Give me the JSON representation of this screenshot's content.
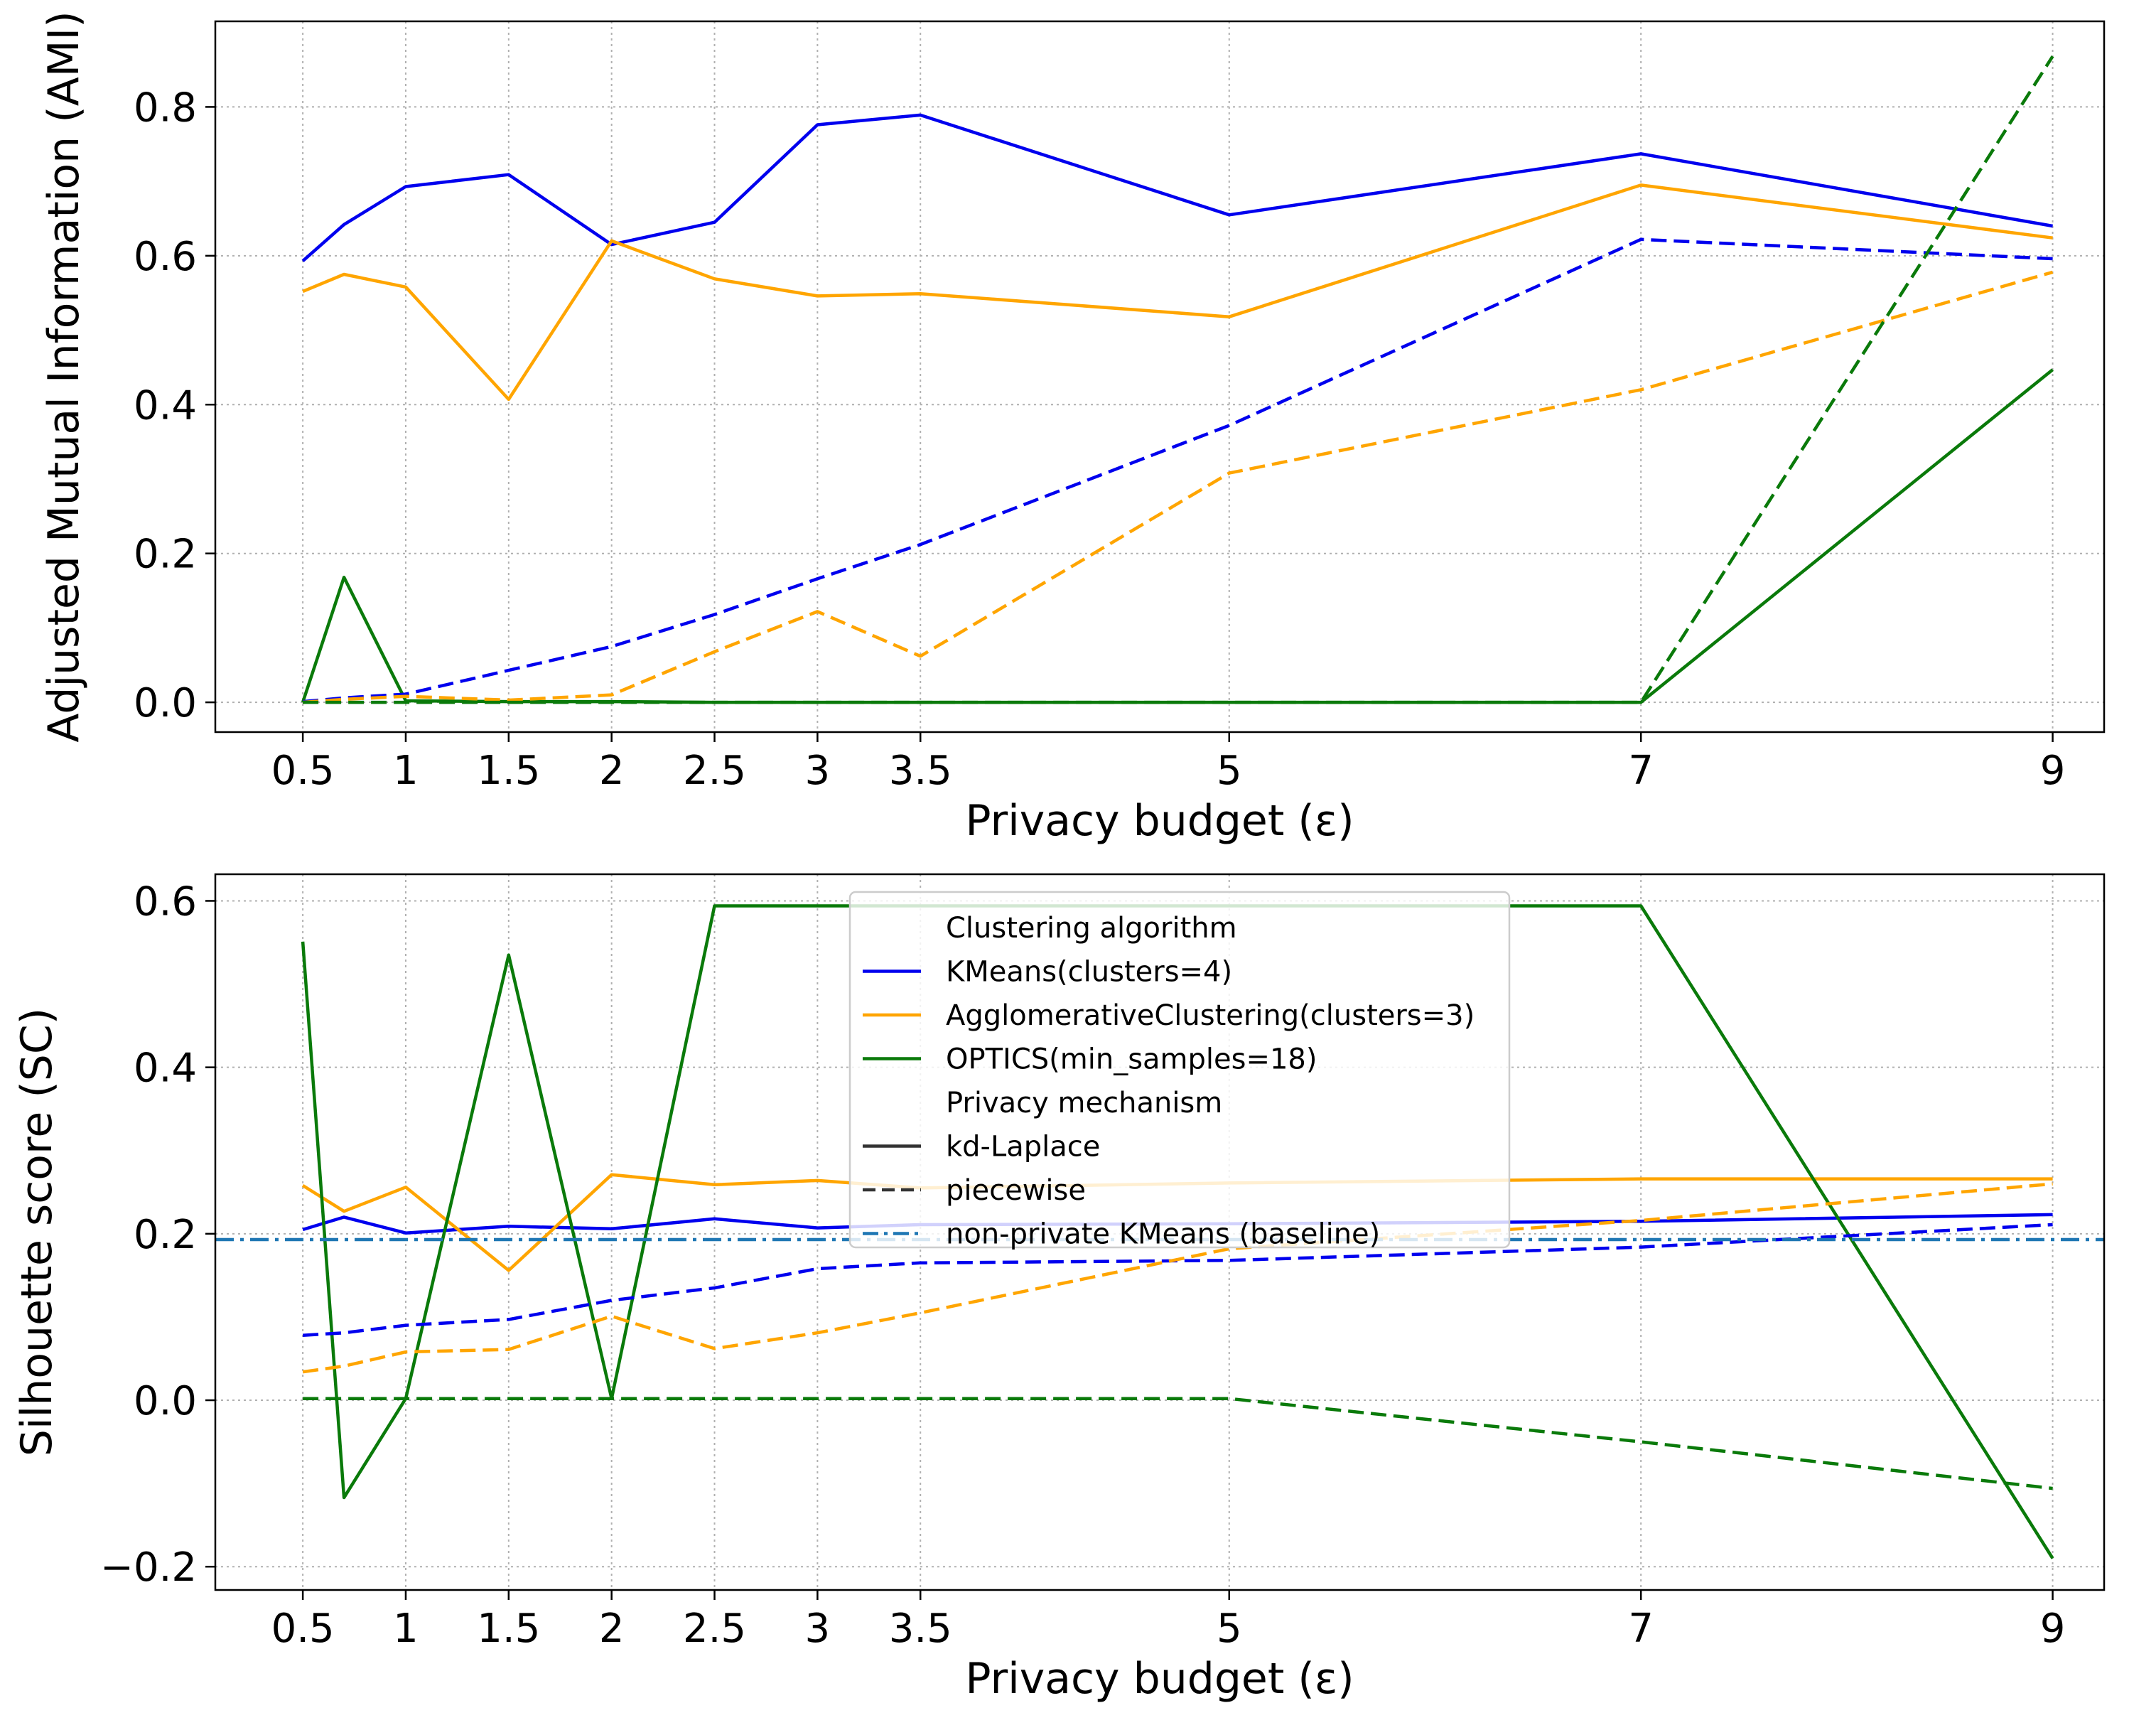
{
  "chart_data": [
    {
      "type": "line",
      "title": "",
      "xlabel": "Privacy budget (ε)",
      "ylabel": "Adjusted Mutual Information (AMI)",
      "x_ticks": [
        0.5,
        1,
        1.5,
        2,
        2.5,
        3,
        3.5,
        5,
        7,
        9
      ],
      "x_tick_labels": [
        "0.5",
        "1",
        "1.5",
        "2",
        "2.5",
        "3",
        "3.5",
        "5",
        "7",
        "9"
      ],
      "y_ticks": [
        0.0,
        0.2,
        0.4,
        0.6,
        0.8
      ],
      "y_tick_labels": [
        "0.0",
        "0.2",
        "0.4",
        "0.6",
        "0.8"
      ],
      "xlim": [
        0.075,
        9.25
      ],
      "ylim": [
        -0.04,
        0.915
      ],
      "grid": true,
      "series": [
        {
          "name": "KMeans(clusters=4)",
          "color": "#0000ee",
          "style": "solid",
          "x": [
            0.5,
            0.7,
            1,
            1.5,
            2,
            2.5,
            3,
            3.5,
            5,
            7,
            9
          ],
          "y": [
            0.593,
            0.642,
            0.693,
            0.709,
            0.615,
            0.645,
            0.776,
            0.789,
            0.655,
            0.737,
            0.64
          ]
        },
        {
          "name": "AgglomerativeClustering(clusters=3)",
          "color": "#ffa500",
          "style": "solid",
          "x": [
            0.5,
            0.7,
            1,
            1.5,
            2,
            2.5,
            3,
            3.5,
            5,
            7,
            9
          ],
          "y": [
            0.552,
            0.575,
            0.558,
            0.407,
            0.62,
            0.569,
            0.546,
            0.549,
            0.518,
            0.695,
            0.624
          ]
        },
        {
          "name": "OPTICS(min_samples=18)",
          "color": "#0a7a0a",
          "style": "solid",
          "x": [
            0.5,
            0.7,
            1,
            1.5,
            2,
            2.5,
            3,
            3.5,
            5,
            7,
            9
          ],
          "y": [
            0.0,
            0.168,
            0.002,
            0.001,
            0.001,
            0.0,
            0.0,
            0.0,
            0.0,
            0.0,
            0.447
          ]
        },
        {
          "name": "KMeans(clusters=4)",
          "color": "#0000ee",
          "style": "dashed",
          "x": [
            0.5,
            0.7,
            1,
            1.5,
            2,
            2.5,
            3,
            3.5,
            5,
            7,
            9
          ],
          "y": [
            0.001,
            0.006,
            0.011,
            0.043,
            0.075,
            0.118,
            0.166,
            0.212,
            0.372,
            0.622,
            0.596
          ]
        },
        {
          "name": "AgglomerativeClustering(clusters=3)",
          "color": "#ffa500",
          "style": "dashed",
          "x": [
            0.5,
            0.7,
            1,
            1.5,
            2,
            2.5,
            3,
            3.5,
            5,
            7,
            9
          ],
          "y": [
            0.0,
            0.004,
            0.008,
            0.003,
            0.01,
            0.068,
            0.122,
            0.062,
            0.308,
            0.42,
            0.578
          ]
        },
        {
          "name": "OPTICS(min_samples=18)",
          "color": "#0a7a0a",
          "style": "dashed",
          "x": [
            0.5,
            0.7,
            1,
            1.5,
            2,
            2.5,
            3,
            3.5,
            5,
            7,
            9
          ],
          "y": [
            0.0,
            0.0,
            0.0,
            0.0,
            0.0,
            0.0,
            0.0,
            0.0,
            0.0,
            0.0,
            0.868
          ]
        }
      ]
    },
    {
      "type": "line",
      "title": "",
      "xlabel": "Privacy budget (ε)",
      "ylabel": "Silhouette score (SC)",
      "x_ticks": [
        0.5,
        1,
        1.5,
        2,
        2.5,
        3,
        3.5,
        5,
        7,
        9
      ],
      "x_tick_labels": [
        "0.5",
        "1",
        "1.5",
        "2",
        "2.5",
        "3",
        "3.5",
        "5",
        "7",
        "9"
      ],
      "y_ticks": [
        -0.2,
        0.0,
        0.2,
        0.4,
        0.6
      ],
      "y_tick_labels": [
        "−0.2",
        "0.0",
        "0.2",
        "0.4",
        "0.6"
      ],
      "xlim": [
        0.075,
        9.25
      ],
      "ylim": [
        -0.228,
        0.632
      ],
      "grid": true,
      "series": [
        {
          "name": "KMeans(clusters=4)",
          "color": "#0000ee",
          "style": "solid",
          "x": [
            0.5,
            0.7,
            1,
            1.5,
            2,
            2.5,
            3,
            3.5,
            5,
            7,
            9
          ],
          "y": [
            0.205,
            0.22,
            0.201,
            0.209,
            0.206,
            0.218,
            0.207,
            0.211,
            0.212,
            0.215,
            0.223
          ]
        },
        {
          "name": "AgglomerativeClustering(clusters=3)",
          "color": "#ffa500",
          "style": "solid",
          "x": [
            0.5,
            0.7,
            1,
            1.5,
            2,
            2.5,
            3,
            3.5,
            5,
            7,
            9
          ],
          "y": [
            0.258,
            0.227,
            0.256,
            0.156,
            0.271,
            0.259,
            0.264,
            0.255,
            0.261,
            0.266,
            0.266
          ]
        },
        {
          "name": "OPTICS(min_samples=18)",
          "color": "#0a7a0a",
          "style": "solid",
          "x": [
            0.5,
            0.7,
            1,
            1.5,
            2,
            2.5,
            3,
            3.5,
            5,
            7,
            9
          ],
          "y": [
            0.551,
            -0.117,
            0.002,
            0.535,
            0.002,
            0.594,
            0.594,
            0.594,
            0.594,
            0.594,
            -0.19
          ]
        },
        {
          "name": "KMeans(clusters=4)",
          "color": "#0000ee",
          "style": "dashed",
          "x": [
            0.5,
            0.7,
            1,
            1.5,
            2,
            2.5,
            3,
            3.5,
            5,
            7,
            9
          ],
          "y": [
            0.078,
            0.081,
            0.09,
            0.097,
            0.12,
            0.135,
            0.158,
            0.165,
            0.168,
            0.184,
            0.211
          ]
        },
        {
          "name": "AgglomerativeClustering(clusters=3)",
          "color": "#ffa500",
          "style": "dashed",
          "x": [
            0.5,
            0.7,
            1,
            1.5,
            2,
            2.5,
            3,
            3.5,
            5,
            7,
            9
          ],
          "y": [
            0.034,
            0.041,
            0.058,
            0.061,
            0.101,
            0.062,
            0.081,
            0.105,
            0.182,
            0.216,
            0.26
          ]
        },
        {
          "name": "OPTICS(min_samples=18)",
          "color": "#0a7a0a",
          "style": "dashed",
          "x": [
            0.5,
            0.7,
            1,
            1.5,
            2,
            2.5,
            3,
            3.5,
            5,
            7,
            9
          ],
          "y": [
            0.002,
            0.002,
            0.002,
            0.002,
            0.002,
            0.002,
            0.002,
            0.002,
            0.002,
            -0.05,
            -0.106
          ]
        },
        {
          "name": "non-private KMeans (baseline)",
          "color": "#1f77b4",
          "style": "dashdot",
          "x": [
            0.075,
            9.25
          ],
          "y": [
            0.193,
            0.193
          ]
        }
      ],
      "legend": {
        "placement": "top-center",
        "sections": [
          {
            "title": "Clustering algorithm",
            "entries": [
              {
                "label": "KMeans(clusters=4)",
                "color": "#0000ee",
                "style": "solid"
              },
              {
                "label": "AgglomerativeClustering(clusters=3)",
                "color": "#ffa500",
                "style": "solid"
              },
              {
                "label": "OPTICS(min_samples=18)",
                "color": "#0a7a0a",
                "style": "solid"
              }
            ]
          },
          {
            "title": "Privacy mechanism",
            "entries": [
              {
                "label": "kd-Laplace",
                "color": "#333333",
                "style": "solid"
              },
              {
                "label": "piecewise",
                "color": "#333333",
                "style": "dashed"
              },
              {
                "label": "non-private KMeans (baseline)",
                "color": "#1f77b4",
                "style": "dashdot"
              }
            ]
          }
        ]
      }
    }
  ]
}
